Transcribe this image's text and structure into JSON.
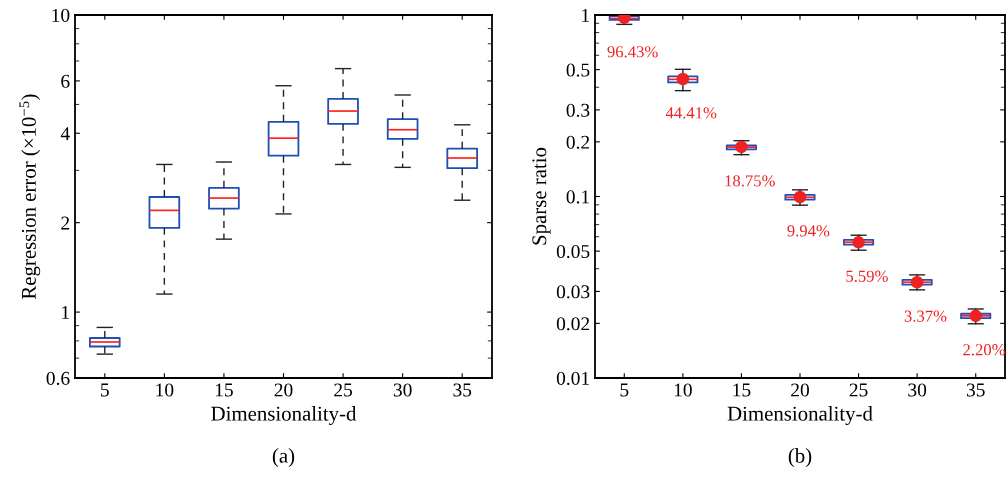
{
  "chart_data": [
    {
      "type": "box",
      "xlabel": "Dimensionality-d",
      "ylabel": "Regression error (×10$^{−5}$)",
      "categories": [
        "5",
        "10",
        "15",
        "20",
        "25",
        "30",
        "35"
      ],
      "log": "y",
      "ylim": [
        0.6,
        10
      ],
      "yticks": [
        0.6,
        1,
        2,
        4,
        6,
        10
      ],
      "grid": false,
      "legend": false,
      "line_style": "dashed",
      "color": "#1f4fb5",
      "annotations": [
        "(a)"
      ],
      "boxes": [
        {
          "low": 0.722,
          "q1": 0.766,
          "median": 0.793,
          "q3": 0.818,
          "high": 0.888
        },
        {
          "low": 1.15,
          "q1": 1.92,
          "median": 2.2,
          "q3": 2.44,
          "high": 3.14
        },
        {
          "low": 1.76,
          "q1": 2.23,
          "median": 2.42,
          "q3": 2.62,
          "high": 3.2
        },
        {
          "low": 2.14,
          "q1": 3.36,
          "median": 3.85,
          "q3": 4.37,
          "high": 5.78
        },
        {
          "low": 3.14,
          "q1": 4.3,
          "median": 4.75,
          "q3": 5.22,
          "high": 6.6
        },
        {
          "low": 3.07,
          "q1": 3.83,
          "median": 4.11,
          "q3": 4.46,
          "high": 5.38
        },
        {
          "low": 2.38,
          "q1": 3.05,
          "median": 3.3,
          "q3": 3.55,
          "high": 4.27
        }
      ]
    },
    {
      "type": "box",
      "xlabel": "Dimensionality-d",
      "ylabel": "Sparse ratio",
      "categories": [
        "5",
        "10",
        "15",
        "20",
        "25",
        "30",
        "35"
      ],
      "log": "y",
      "ylim": [
        0.01,
        1
      ],
      "yticks": [
        0.01,
        0.02,
        0.03,
        0.05,
        0.1,
        0.2,
        0.3,
        0.5,
        1
      ],
      "grid": false,
      "legend": false,
      "annotations": [
        "(b)"
      ],
      "series": [
        {
          "type": "box",
          "line_style": "solid",
          "color": "#1f4fb5",
          "boxes": [
            {
              "low": 0.888,
              "q1": 0.939,
              "median": 0.958,
              "q3": 0.987,
              "high": 1.0
            },
            {
              "low": 0.383,
              "q1": 0.425,
              "median": 0.442,
              "q3": 0.459,
              "high": 0.502
            },
            {
              "low": 0.17,
              "q1": 0.182,
              "median": 0.187,
              "q3": 0.191,
              "high": 0.203
            },
            {
              "low": 0.0896,
              "q1": 0.0962,
              "median": 0.099,
              "q3": 0.1021,
              "high": 0.1088
            },
            {
              "low": 0.0506,
              "q1": 0.0543,
              "median": 0.056,
              "q3": 0.0577,
              "high": 0.0612
            },
            {
              "low": 0.0306,
              "q1": 0.0327,
              "median": 0.0337,
              "q3": 0.0347,
              "high": 0.037
            },
            {
              "low": 0.0199,
              "q1": 0.0214,
              "median": 0.022,
              "q3": 0.0226,
              "high": 0.024
            }
          ]
        },
        {
          "type": "scatter",
          "marker": "circle",
          "color": "#ee2222",
          "x": [
            "5",
            "10",
            "15",
            "20",
            "25",
            "30",
            "35"
          ],
          "values": [
            0.9643,
            0.4441,
            0.1875,
            0.0994,
            0.0559,
            0.0337,
            0.022
          ],
          "value_labels": [
            "96.43%",
            "44.41%",
            "18.75%",
            "9.94%",
            "5.59%",
            "3.37%",
            "2.20%"
          ]
        }
      ]
    }
  ]
}
